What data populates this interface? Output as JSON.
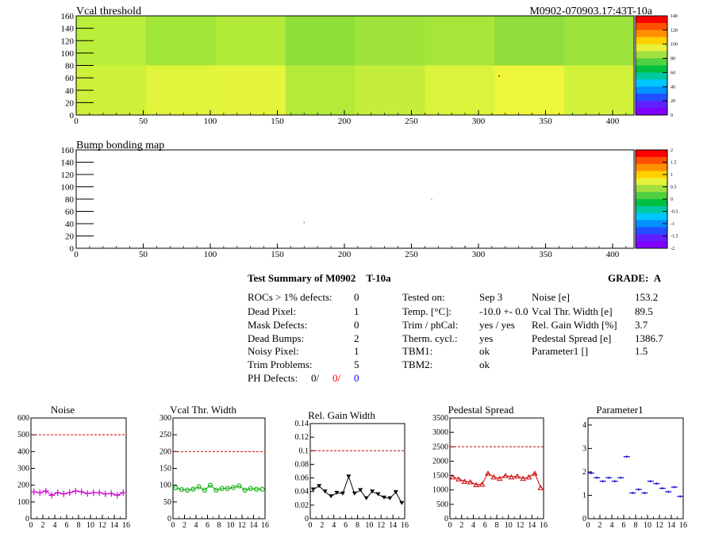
{
  "header": {
    "left_title": "Vcal threshold",
    "right_title": "M0902-070903.17:43T-10a"
  },
  "maps": [
    {
      "title": "Vcal threshold",
      "x_ticks": [
        0,
        50,
        100,
        150,
        200,
        250,
        300,
        350,
        400
      ],
      "y_ticks": [
        0,
        20,
        40,
        60,
        80,
        100,
        120,
        140,
        160
      ],
      "xlim": [
        0,
        416
      ],
      "ylim": [
        0,
        160
      ],
      "palette_ticks": [
        "0",
        "20",
        "40",
        "60",
        "80",
        "100",
        "120",
        "140"
      ]
    },
    {
      "title": "Bump bonding map",
      "x_ticks": [
        0,
        50,
        100,
        150,
        200,
        250,
        300,
        350,
        400
      ],
      "y_ticks": [
        0,
        20,
        40,
        60,
        80,
        100,
        120,
        140,
        160
      ],
      "xlim": [
        0,
        416
      ],
      "ylim": [
        0,
        160
      ],
      "palette_ticks": [
        "-2",
        "-1.5",
        "-1",
        "-0.5",
        "0",
        "0.5",
        "1",
        "1.5",
        "2"
      ],
      "points": [
        [
          170,
          42
        ],
        [
          265,
          80
        ],
        [
          290,
          3
        ]
      ]
    }
  ],
  "summary": {
    "title": "Test Summary of M0902",
    "temp_tag": "T-10a",
    "grade_label": "GRADE:",
    "grade": "A",
    "defects": [
      {
        "label": "ROCs > 1% defects:",
        "value": "0"
      },
      {
        "label": "Dead Pixel:",
        "value": "1"
      },
      {
        "label": "Mask Defects:",
        "value": "0"
      },
      {
        "label": "Dead Bumps:",
        "value": "2"
      },
      {
        "label": "Noisy Pixel:",
        "value": "1"
      },
      {
        "label": "Trim Problems:",
        "value": "5"
      }
    ],
    "ph_defects": {
      "label": "PH Defects:",
      "v1": "0/",
      "v2": "0/",
      "v3": "0"
    },
    "conditions": [
      {
        "label": "Tested on:",
        "value": "Sep 3"
      },
      {
        "label": "Temp. [°C]:",
        "value": "-10.0 +- 0.0"
      },
      {
        "label": "Trim / phCal:",
        "value": "yes / yes"
      },
      {
        "label": "Therm. cycl.:",
        "value": "yes"
      },
      {
        "label": "TBM1:",
        "value": "ok"
      },
      {
        "label": "TBM2:",
        "value": "ok"
      }
    ],
    "parameters": [
      {
        "label": "Noise [e]",
        "value": "153.2"
      },
      {
        "label": "Vcal Thr. Width [e]",
        "value": "89.5"
      },
      {
        "label": "Rel. Gain Width [%]",
        "value": "3.7"
      },
      {
        "label": "Pedestal Spread [e]",
        "value": "1386.7"
      },
      {
        "label": "Parameter1 []",
        "value": "1.5"
      }
    ]
  },
  "chart_data": [
    {
      "type": "line",
      "title": "Noise",
      "color": "#cc00cc",
      "marker": "cross",
      "x": [
        0,
        1,
        2,
        3,
        4,
        5,
        6,
        7,
        8,
        9,
        10,
        11,
        12,
        13,
        14,
        15
      ],
      "values": [
        160,
        155,
        165,
        140,
        155,
        148,
        155,
        165,
        160,
        150,
        155,
        155,
        148,
        150,
        140,
        155
      ],
      "ylim": [
        0,
        600
      ],
      "y_ticks": [
        0,
        100,
        200,
        300,
        400,
        500,
        600
      ],
      "x_ticks": [
        0,
        2,
        4,
        6,
        8,
        10,
        12,
        14,
        16
      ],
      "reference": 500
    },
    {
      "type": "line",
      "title": "Vcal Thr. Width",
      "color": "#00aa00",
      "marker": "circle",
      "x": [
        0,
        1,
        2,
        3,
        4,
        5,
        6,
        7,
        8,
        9,
        10,
        11,
        12,
        13,
        14,
        15
      ],
      "values": [
        92,
        87,
        85,
        88,
        95,
        85,
        100,
        85,
        90,
        90,
        93,
        98,
        85,
        90,
        88,
        88
      ],
      "ylim": [
        0,
        300
      ],
      "y_ticks": [
        0,
        50,
        100,
        150,
        200,
        250,
        300
      ],
      "x_ticks": [
        0,
        2,
        4,
        6,
        8,
        10,
        12,
        14,
        16
      ],
      "reference": 200
    },
    {
      "type": "line",
      "title": "Rel. Gain Width",
      "color": "#000000",
      "marker": "triangle-down",
      "x": [
        0,
        1,
        2,
        3,
        4,
        5,
        6,
        7,
        8,
        9,
        10,
        11,
        12,
        13,
        14,
        15
      ],
      "values": [
        0.043,
        0.048,
        0.04,
        0.033,
        0.038,
        0.037,
        0.062,
        0.037,
        0.042,
        0.03,
        0.04,
        0.036,
        0.031,
        0.03,
        0.039,
        0.023
      ],
      "ylim": [
        0,
        0.14
      ],
      "y_ticks": [
        "0",
        "0.02",
        "0.04",
        "0.06",
        "0.08",
        "0.1",
        "0.12",
        "0.14"
      ],
      "x_ticks": [
        0,
        2,
        4,
        6,
        8,
        10,
        12,
        14,
        16
      ],
      "reference": 0.1
    },
    {
      "type": "line",
      "title": "Pedestal Spread",
      "color": "#cc0000",
      "marker": "triangle-up",
      "x": [
        0,
        1,
        2,
        3,
        4,
        5,
        6,
        7,
        8,
        9,
        10,
        11,
        12,
        13,
        14,
        15
      ],
      "values": [
        1450,
        1380,
        1300,
        1280,
        1180,
        1200,
        1580,
        1450,
        1400,
        1500,
        1450,
        1480,
        1400,
        1450,
        1580,
        1080
      ],
      "ylim": [
        0,
        3500
      ],
      "y_ticks": [
        0,
        500,
        1000,
        1500,
        2000,
        2500,
        3000,
        3500
      ],
      "x_ticks": [
        0,
        2,
        4,
        6,
        8,
        10,
        12,
        14,
        16
      ],
      "reference": 2500
    },
    {
      "type": "scatter",
      "title": "Parameter1",
      "color": "#0000cc",
      "marker": "hbar",
      "x": [
        0,
        1,
        2,
        3,
        4,
        5,
        6,
        7,
        8,
        9,
        10,
        11,
        12,
        13,
        14,
        15
      ],
      "values": [
        1.95,
        1.75,
        1.6,
        1.75,
        1.6,
        1.75,
        2.65,
        1.1,
        1.25,
        1.1,
        1.6,
        1.5,
        1.3,
        1.15,
        1.35,
        0.95
      ],
      "ylim": [
        0,
        4.3
      ],
      "y_ticks": [
        0,
        1,
        2,
        3,
        4
      ],
      "x_ticks": [
        0,
        2,
        4,
        6,
        8,
        10,
        12,
        14,
        16
      ]
    }
  ]
}
